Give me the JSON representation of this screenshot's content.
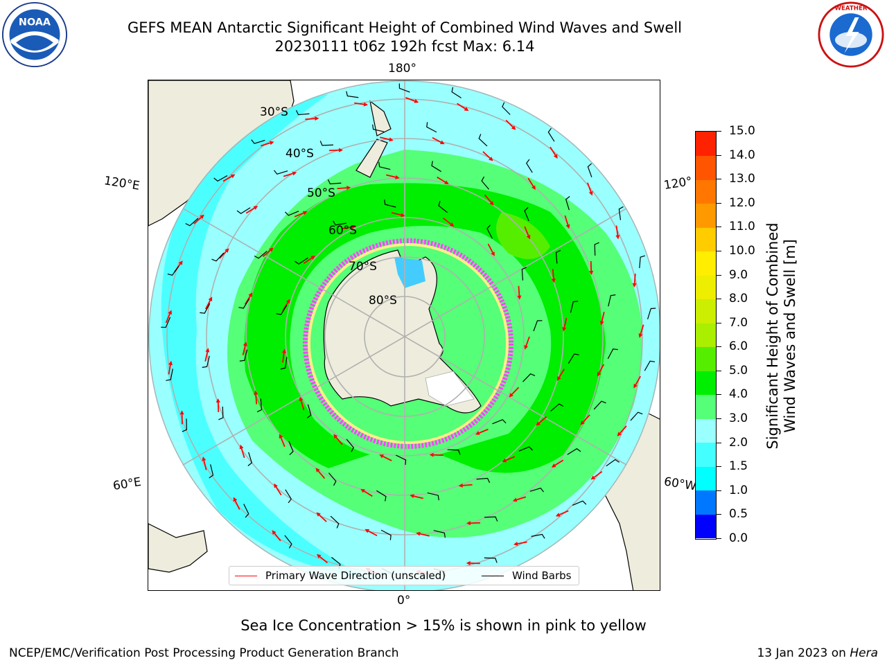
{
  "title": {
    "line1": "GEFS MEAN Antarctic Significant Height of Combined Wind Waves and Swell",
    "line2": "20230111 t06z 192h fcst   Max: 6.14"
  },
  "map": {
    "lon_labels": {
      "top": "180°",
      "bottom": "0°",
      "left_upper": "120°E",
      "left_lower": "60°E",
      "right_upper": "120°",
      "right_lower": "60°W"
    },
    "lat_labels": [
      "30°S",
      "40°S",
      "50°S",
      "60°S",
      "70°S",
      "80°S"
    ],
    "colors": {
      "land": "#eeecdc",
      "ice": "#ff44ff",
      "wave_arrow": "#ff0000",
      "wind_barb": "#000000",
      "grid": "#b0b0b0"
    }
  },
  "legend": {
    "wave_label": "Primary Wave Direction (unscaled)",
    "barb_label": "Wind Barbs"
  },
  "colorbar": {
    "title_line1": "Significant Height of Combined",
    "title_line2": "Wind Waves and Swell [m]",
    "ticks": [
      "0.0",
      "0.5",
      "1.0",
      "1.5",
      "2.0",
      "3.0",
      "4.0",
      "5.0",
      "6.0",
      "7.0",
      "8.0",
      "9.0",
      "10.0",
      "11.0",
      "12.0",
      "13.0",
      "14.0",
      "15.0"
    ],
    "colors": [
      "#0000ff",
      "#0077ff",
      "#00ffff",
      "#44ffff",
      "#99ffff",
      "#55ff77",
      "#00ee00",
      "#55ee00",
      "#aaee00",
      "#ccee00",
      "#eeee00",
      "#ffee00",
      "#ffcc00",
      "#ff9900",
      "#ff7700",
      "#ff5500",
      "#ff2200"
    ]
  },
  "subcaption": "Sea Ice Concentration > 15% is shown in pink to yellow",
  "footer": {
    "left": "NCEP/EMC/Verification Post Processing Product Generation Branch",
    "right_prefix": "13 Jan 2023 on ",
    "right_host": "Hera"
  }
}
